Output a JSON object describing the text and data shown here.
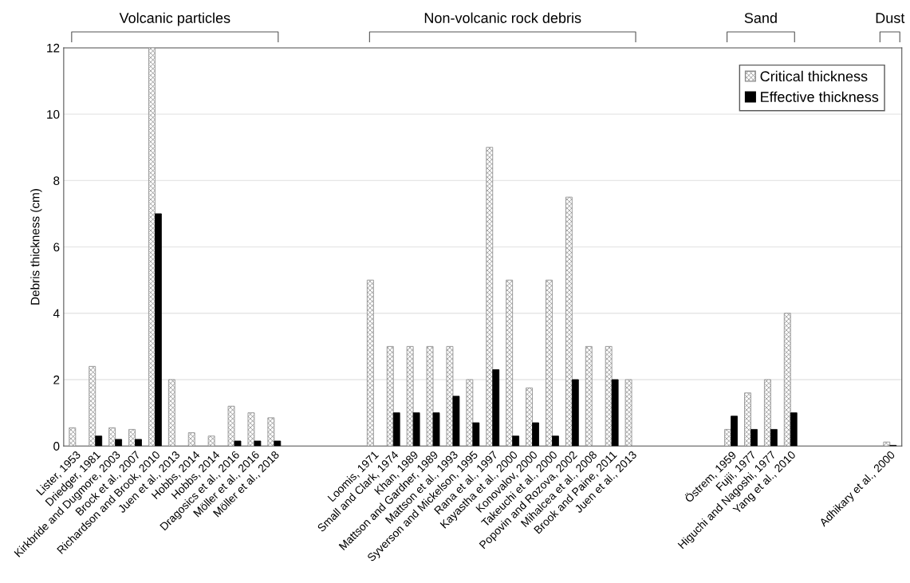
{
  "chart_data": {
    "type": "bar",
    "ylabel": "Debris thickness (cm)",
    "categories": [
      "Lister, 1953",
      "Driedger, 1981",
      "Kirkbride and Dugmore, 2003",
      "Brock et al., 2007",
      "Richardson and Brook, 2010",
      "Juen et al., 2013",
      "Hobbs, 2014",
      "Hobbs, 2014",
      "Dragosics et al., 2016",
      "Möller et al., 2016",
      "Möller et al., 2018",
      null,
      null,
      null,
      null,
      "Loomis, 1971",
      "Small and Clark, 1974",
      "Khan, 1989",
      "Mattson and Gardner, 1989",
      "Mattson et al., 1993",
      "Syverson and Mickelson, 1995",
      "Rana et al., 1997",
      "Kayastha et al., 2000",
      "Konovalov, 2000",
      "Takeuchi et al., 2000",
      "Popovin and Rozova, 2002",
      "Mihalcea et al., 2008",
      "Brook and Paine, 2011",
      "Juen et al., 2013",
      null,
      null,
      null,
      null,
      "Östrem, 1959",
      "Fujii, 1977",
      "Higuchi and Nagoshi, 1977",
      "Yang et al., 2010",
      null,
      null,
      null,
      null,
      "Adhikary et al., 2000"
    ],
    "series": [
      {
        "name": "Critical thickness",
        "color": "#8c8c8c",
        "values": [
          0.55,
          2.4,
          0.55,
          0.5,
          12,
          2,
          0.4,
          0.3,
          1.2,
          1.0,
          0.85,
          null,
          null,
          null,
          null,
          5,
          3,
          3,
          3,
          3,
          2,
          9,
          5,
          1.75,
          5,
          7.5,
          3,
          3,
          2,
          null,
          null,
          null,
          null,
          0.5,
          1.6,
          2,
          4,
          null,
          null,
          null,
          null,
          0.12
        ]
      },
      {
        "name": "Effective thickness",
        "color": "#000000",
        "values": [
          null,
          0.3,
          0.2,
          0.2,
          7,
          null,
          null,
          null,
          0.15,
          0.15,
          0.15,
          null,
          null,
          null,
          null,
          null,
          1,
          1,
          1,
          1.5,
          0.7,
          2.3,
          0.3,
          0.7,
          0.3,
          2,
          null,
          2,
          null,
          null,
          null,
          null,
          null,
          0.9,
          0.5,
          0.5,
          1,
          null,
          null,
          null,
          null,
          0.02
        ]
      }
    ],
    "ylim": [
      0,
      12
    ],
    "yticks": [
      0,
      2,
      4,
      6,
      8,
      10,
      12
    ],
    "grid": "y",
    "legend": "top right",
    "annotations": [
      "Volcanic particles",
      "Non-volcanic rock debris",
      "Sand",
      "Dust"
    ]
  }
}
